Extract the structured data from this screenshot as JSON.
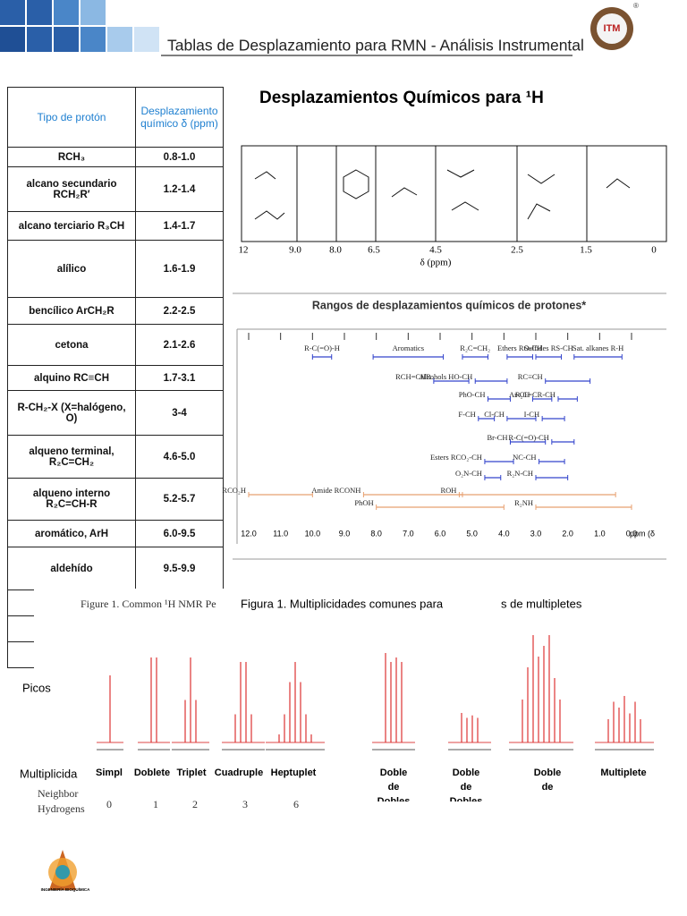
{
  "header": {
    "title": "Tablas de Desplazamiento para RMN - Análisis Instrumental",
    "logo_mark": "®",
    "logo_text": "ITM"
  },
  "table": {
    "headers": [
      "Tipo de protón",
      "Desplazamiento químico δ (ppm)"
    ],
    "rows": [
      [
        "RCH₃",
        "0.8-1.0"
      ],
      [
        "alcano secundario RCH₂R′",
        "1.2-1.4"
      ],
      [
        "alcano terciario R₃CH",
        "1.4-1.7"
      ],
      [
        "alílico",
        "1.6-1.9"
      ],
      [
        "bencílico ArCH₂R",
        "2.2-2.5"
      ],
      [
        "cetona",
        "2.1-2.6"
      ],
      [
        "alquino RC≡CH",
        "1.7-3.1"
      ],
      [
        "R-CH₂-X (X=halógeno, O)",
        "3-4"
      ],
      [
        "alqueno terminal, R₂C=CH₂",
        "4.6-5.0"
      ],
      [
        "alqueno interno R₂C=CH-R",
        "5.2-5.7"
      ],
      [
        "aromático, ArH",
        "6.0-9.5"
      ],
      [
        "aldehído",
        "9.5-9.9"
      ]
    ]
  },
  "figure_h1": {
    "title": "Desplazamientos Químicos para ¹H",
    "ticks": [
      "12",
      "9.0",
      "8.0",
      "6.5",
      "4.5",
      "2.5",
      "1.5",
      "0"
    ],
    "axis_label": "δ (ppm)"
  },
  "ranges_chart": {
    "title": "Rangos de desplazamientos químicos de protones*",
    "ticks": [
      {
        "value": 12,
        "label": "12.0"
      },
      {
        "value": 11,
        "label": "11.0"
      },
      {
        "value": 10,
        "label": "10.0"
      },
      {
        "value": 9,
        "label": "9.0"
      },
      {
        "value": 8,
        "label": "8.0"
      },
      {
        "value": 7,
        "label": "7.0"
      },
      {
        "value": 6,
        "label": "6.0"
      },
      {
        "value": 5,
        "label": "5.0"
      },
      {
        "value": 4,
        "label": "4.0"
      },
      {
        "value": 3,
        "label": "3.0"
      },
      {
        "value": 2,
        "label": "2.0"
      },
      {
        "value": 1,
        "label": "1.0"
      },
      {
        "value": 0,
        "label": "0.0"
      }
    ],
    "axis_label": "ppm (δ",
    "rows": [
      [
        {
          "label": "R-C(=O)-H",
          "from": 10.0,
          "to": 9.4,
          "color": "#3344cc"
        },
        {
          "label": "Aromatics",
          "from": 8.1,
          "to": 5.9,
          "color": "#3344cc"
        },
        {
          "label": "R₂C=CH₂",
          "from": 5.3,
          "to": 4.5,
          "color": "#3344cc"
        },
        {
          "label": "Ethers RO-CH",
          "from": 3.9,
          "to": 3.1,
          "color": "#3344cc"
        },
        {
          "label": "Sulfides RS-CH",
          "from": 3.0,
          "to": 2.2,
          "color": "#3344cc"
        },
        {
          "label": "Sat. alkanes R-H",
          "from": 1.8,
          "to": 0.3,
          "color": "#3344cc"
        }
      ],
      [
        {
          "label": "RCH=CHR",
          "from": 6.2,
          "to": 5.1,
          "color": "#3344cc"
        },
        {
          "label": "Alcohols HO-CH",
          "from": 4.9,
          "to": 3.9,
          "color": "#3344cc"
        },
        {
          "label": "RC≡CH",
          "from": 2.7,
          "to": 1.3,
          "color": "#3344cc"
        }
      ],
      [
        {
          "label": "PhO-CH",
          "from": 4.5,
          "to": 3.8,
          "color": "#3344cc"
        },
        {
          "label": "Ar-CH",
          "from": 3.1,
          "to": 2.5,
          "color": "#3344cc"
        },
        {
          "label": "R₂C=CR-CH",
          "from": 2.3,
          "to": 1.7,
          "color": "#3344cc"
        }
      ],
      [
        {
          "label": "F-CH",
          "from": 4.8,
          "to": 4.3,
          "color": "#3344cc"
        },
        {
          "label": "Cl-CH",
          "from": 3.9,
          "to": 3.0,
          "color": "#3344cc"
        },
        {
          "label": "I-CH",
          "from": 2.8,
          "to": 2.1,
          "color": "#3344cc"
        }
      ],
      [
        {
          "label": "Br-CH",
          "from": 3.8,
          "to": 2.7,
          "color": "#3344cc"
        },
        {
          "label": "R-C(=O)-CH",
          "from": 2.5,
          "to": 1.8,
          "color": "#3344cc"
        }
      ],
      [
        {
          "label": "Esters RCO₂-CH",
          "from": 4.6,
          "to": 3.7,
          "color": "#3344cc"
        },
        {
          "label": "NC-CH",
          "from": 2.9,
          "to": 2.1,
          "color": "#3344cc"
        }
      ],
      [
        {
          "label": "O₂N-CH",
          "from": 4.6,
          "to": 4.1,
          "color": "#3344cc"
        },
        {
          "label": "R₂N-CH",
          "from": 3.0,
          "to": 2.0,
          "color": "#3344cc"
        }
      ],
      [
        {
          "label": "RCO₂H",
          "from": 12.0,
          "to": 10.0,
          "color": "#e8a070"
        },
        {
          "label": "Amide RCONH",
          "from": 8.4,
          "to": 5.3,
          "color": "#e8a070"
        },
        {
          "label": "ROH",
          "from": 5.4,
          "to": 0.5,
          "color": "#e8a070"
        }
      ],
      [
        {
          "label": "PhOH",
          "from": 8.0,
          "to": 4.0,
          "color": "#e8a070"
        },
        {
          "label": "R₂NH",
          "from": 3.0,
          "to": 0.0,
          "color": "#e8a070"
        }
      ]
    ]
  },
  "multiplicity": {
    "caption_en": "Figure 1.  Common ¹H NMR Pe",
    "caption_es": "Figura 1. Multiplicidades comunes para",
    "caption_tail": "s de multipletes",
    "peaks_label": "Picos",
    "row_label": "Multiplicida",
    "names": [
      "Simpl",
      "Doblete",
      "Triplet",
      "Cuadruple",
      "Heptuplet",
      "Doble de Dobles",
      "Doble de Dobles",
      "Doble de",
      "Multiplete"
    ],
    "neighbor_label": "Neighbor Hydrogens",
    "neighbors": [
      "0",
      "1",
      "2",
      "3",
      "6"
    ]
  },
  "footer": {
    "logo_text": "INGENIERÍA BIOQUÍMICA"
  }
}
